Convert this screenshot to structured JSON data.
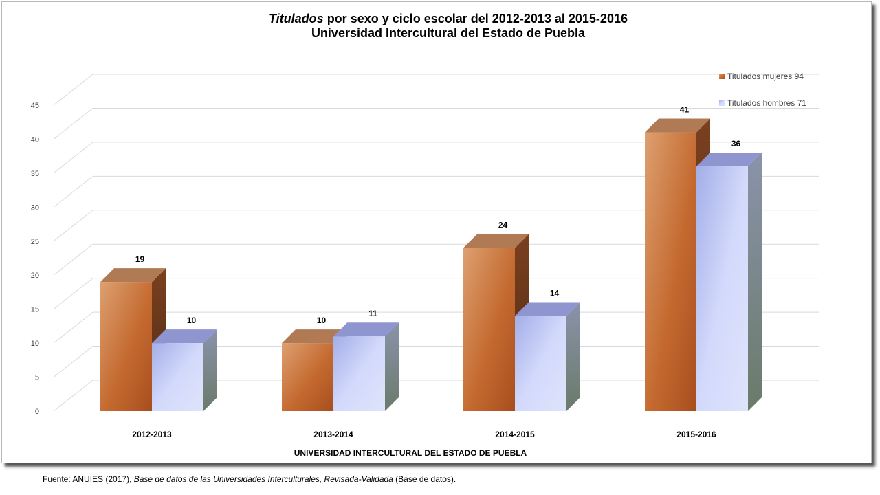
{
  "chart_data": {
    "type": "bar",
    "title_italic": "Titulados",
    "title_rest": " por sexo y ciclo escolar del  2012-2013 al 2015-2016",
    "subtitle": "Universidad Intercultural del Estado de Puebla",
    "xlabel": "UNIVERSIDAD INTERCULTURAL DEL ESTADO DE PUEBLA",
    "ylabel": "",
    "ylim": [
      0,
      45
    ],
    "yticks": [
      "0",
      "5",
      "10",
      "15",
      "20",
      "25",
      "30",
      "35",
      "40",
      "45"
    ],
    "categories": [
      "2012-2013",
      "2013-2014",
      "2014-2015",
      "2015-2016"
    ],
    "series": [
      {
        "name": "Titulados mujeres  94",
        "values": [
          19,
          10,
          24,
          41
        ]
      },
      {
        "name": "Titulados hombres  71",
        "values": [
          10,
          11,
          14,
          36
        ]
      }
    ],
    "grid": true,
    "legend": "top-right",
    "colors": {
      "mujeres_front_light": "#dda070",
      "mujeres_front_dark": "#a84e1e",
      "mujeres_top": "#b07a55",
      "mujeres_side": "#6e3a18",
      "hombres_front_light": "#dfe3fb",
      "hombres_front_dark": "#a3aee8",
      "hombres_top": "#8e95cf",
      "hombres_side": "#858ea5"
    }
  },
  "source": {
    "prefix": "Fuente: ANUIES (2017),   ",
    "italic": "Base de datos de las Universidades  Interculturales, Revisada-Validada",
    "suffix": "  (Base de datos)."
  }
}
